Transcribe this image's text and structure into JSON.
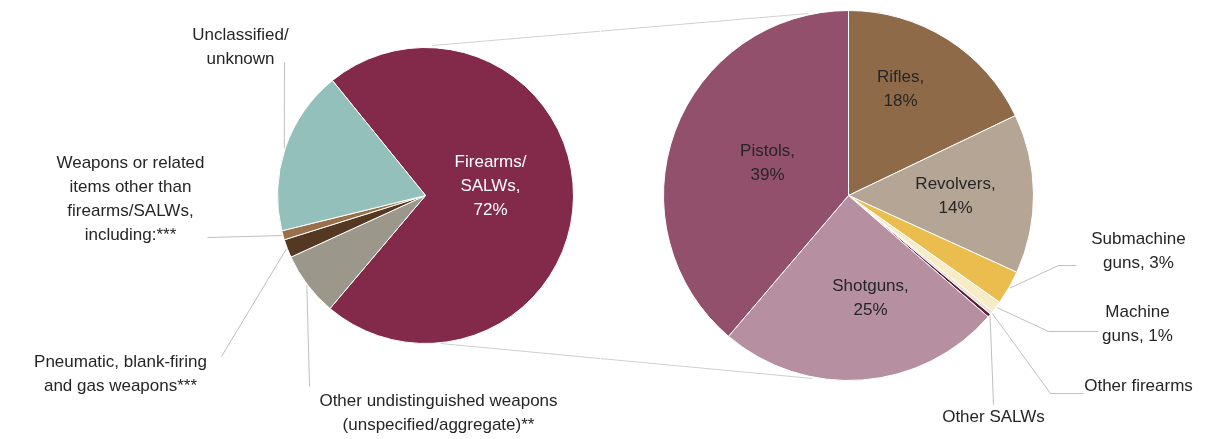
{
  "chart_data": [
    {
      "type": "pie",
      "categories": [
        "Firearms/\nSALWs,\n72%",
        "Other undistinguished weapons\n(unspecified/aggregate)**",
        "Pneumatic, blank-firing\nand gas weapons***",
        "Weapons or related\nitems other than\nfirearms/SALWs,\nincluding:***",
        "Unclassified/\nunknown"
      ],
      "values": [
        72,
        7,
        2,
        1,
        18
      ],
      "colors": [
        "#832a4b",
        "#9b978b",
        "#553821",
        "#99704a",
        "#93c0bb"
      ]
    },
    {
      "type": "pie",
      "categories": [
        "Rifles,\n18%",
        "Revolvers,\n14%",
        "Submachine\nguns, 3%",
        "Machine\nguns, 1%",
        "Other firearms",
        "Other SALWs",
        "Shotguns,\n25%",
        "Pistols,\n39%"
      ],
      "values": [
        18,
        14,
        3,
        1,
        0.3,
        0.3,
        25,
        39
      ],
      "colors": [
        "#8e6a49",
        "#b5a595",
        "#ebbd4e",
        "#f7ecc6",
        "#e9e2d0",
        "#5a1f3a",
        "#b68fa1",
        "#93506c"
      ]
    }
  ]
}
